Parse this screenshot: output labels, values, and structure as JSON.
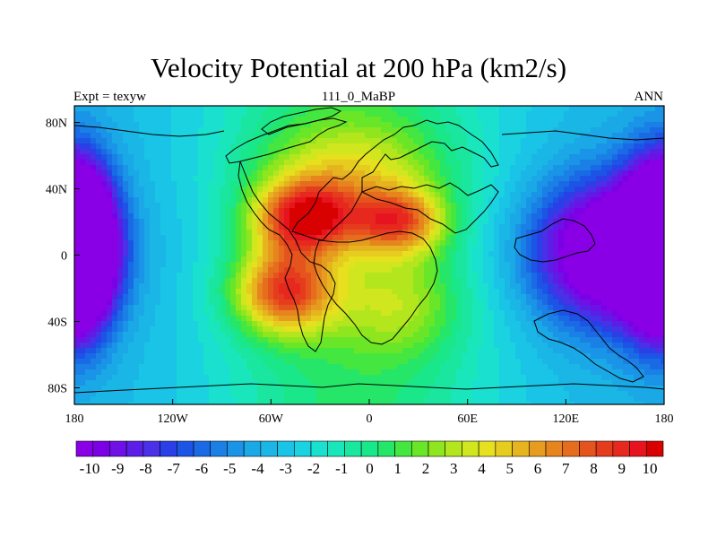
{
  "header": {
    "title": "Velocity Potential at 200 hPa (km2/s)",
    "left": "Expt = texyw",
    "center": "111_0_MaBP",
    "right": "ANN"
  },
  "chart_data": {
    "type": "heatmap",
    "title": "Velocity Potential at 200 hPa (km2/s)",
    "xlim": [
      -180,
      180
    ],
    "ylim": [
      -90,
      90
    ],
    "x_ticks": [
      {
        "value": -180,
        "label": "180"
      },
      {
        "value": -120,
        "label": "120W"
      },
      {
        "value": -60,
        "label": "60W"
      },
      {
        "value": 0,
        "label": "0"
      },
      {
        "value": 60,
        "label": "60E"
      },
      {
        "value": 120,
        "label": "120E"
      },
      {
        "value": 180,
        "label": "180"
      }
    ],
    "y_ticks": [
      {
        "value": 80,
        "label": "80N"
      },
      {
        "value": 40,
        "label": "40N"
      },
      {
        "value": 0,
        "label": "0"
      },
      {
        "value": -40,
        "label": "40S"
      },
      {
        "value": -80,
        "label": "80S"
      }
    ],
    "colorbar": {
      "min": -10,
      "max": 10,
      "step": 0.5,
      "labels": [
        "-10",
        "-9",
        "-8",
        "-7",
        "-6",
        "-5",
        "-4",
        "-3",
        "-2",
        "-1",
        "0",
        "1",
        "2",
        "3",
        "4",
        "5",
        "6",
        "7",
        "8",
        "9",
        "10"
      ],
      "colors": [
        "#8a00e6",
        "#7c00e6",
        "#6e10e6",
        "#5a1ee6",
        "#4a30e6",
        "#2a40e6",
        "#1c55e6",
        "#1a6ae6",
        "#1a80e6",
        "#1a94e6",
        "#1aa8e6",
        "#1ab6e6",
        "#1ac4e6",
        "#1ad2e0",
        "#1ae0d0",
        "#1ae6bc",
        "#1ae6a0",
        "#1ae68a",
        "#26e66a",
        "#44e640",
        "#6ae628",
        "#90e61e",
        "#b4e61e",
        "#d0e61e",
        "#e6e01e",
        "#e6cc1e",
        "#e6b41e",
        "#e69c1e",
        "#e6841e",
        "#e66c1e",
        "#e6541e",
        "#e63c1e",
        "#e6281e",
        "#e6141e",
        "#d80000"
      ]
    },
    "field_centers": [
      {
        "lon": -40,
        "lat": 22,
        "amp": 9.2,
        "sx": 22,
        "sy": 16
      },
      {
        "lon": -52,
        "lat": -22,
        "amp": 8.6,
        "sx": 22,
        "sy": 18
      },
      {
        "lon": 18,
        "lat": 20,
        "amp": 7.2,
        "sx": 20,
        "sy": 14
      },
      {
        "lon": -12,
        "lat": 50,
        "amp": 3.5,
        "sx": 40,
        "sy": 22
      },
      {
        "lon": 20,
        "lat": -30,
        "amp": 3.0,
        "sx": 26,
        "sy": 22
      },
      {
        "lon": 148,
        "lat": 2,
        "amp": -9.8,
        "sx": 34,
        "sy": 30
      },
      {
        "lon": -180,
        "lat": 5,
        "amp": -7.8,
        "sx": 16,
        "sy": 34
      },
      {
        "lon": 180,
        "lat": 5,
        "amp": -7.8,
        "sx": 16,
        "sy": 34
      }
    ]
  }
}
